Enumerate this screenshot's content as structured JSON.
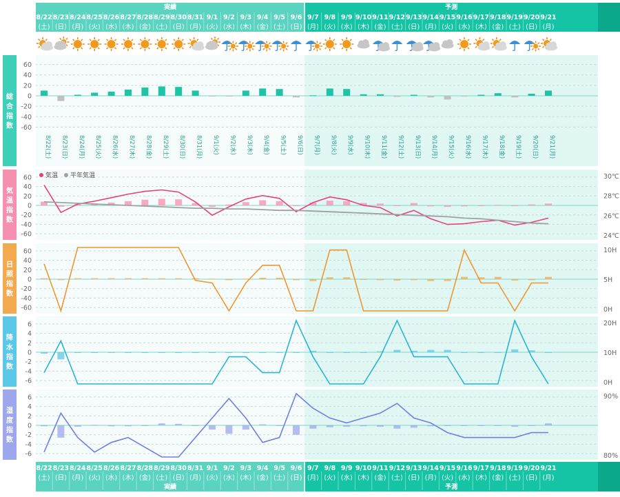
{
  "header": {
    "actual_label": "実績",
    "forecast_label": "予測",
    "dates": [
      "8/22",
      "8/23",
      "8/24",
      "8/25",
      "8/26",
      "8/27",
      "8/28",
      "8/29",
      "8/30",
      "8/31",
      "9/1",
      "9/2",
      "9/3",
      "9/4",
      "9/5",
      "9/6",
      "9/7",
      "9/8",
      "9/9",
      "9/10",
      "9/11",
      "9/12",
      "9/13",
      "9/14",
      "9/15",
      "9/16",
      "9/17",
      "9/18",
      "9/19",
      "9/20",
      "9/21"
    ],
    "weekdays": [
      "(土)",
      "(日)",
      "(月)",
      "(火)",
      "(水)",
      "(木)",
      "(金)",
      "(土)",
      "(日)",
      "(月)",
      "(火)",
      "(水)",
      "(木)",
      "(金)",
      "(土)",
      "(日)",
      "(月)",
      "(火)",
      "(水)",
      "(木)",
      "(金)",
      "(土)",
      "(日)",
      "(月)",
      "(火)",
      "(水)",
      "(木)",
      "(金)",
      "(土)",
      "(日)",
      "(月)"
    ],
    "weather_icons": [
      "sun-cloud-icon",
      "cloud-sun-icon",
      "sun-icon",
      "sun-icon",
      "sun-icon",
      "sun-icon",
      "sun-icon",
      "sun-icon",
      "sun-icon",
      "sun-cloud-icon",
      "cloud-sun-icon",
      "umbrella-sun-icon",
      "umbrella-sun-icon",
      "umbrella-sun-icon",
      "umbrella-sun-icon",
      "umbrella-icon",
      "umbrella-sun-icon",
      "sun-icon",
      "sun-icon",
      "cloud-icon",
      "umbrella-cloud-icon",
      "umbrella-icon",
      "umbrella-cloud-icon",
      "umbrella-cloud-icon",
      "cloud-icon",
      "sun-icon",
      "sun-cloud-icon",
      "sun-cloud-icon",
      "umbrella-icon",
      "umbrella-sun-icon",
      "sun-cloud-icon"
    ]
  },
  "panels": {
    "overall": {
      "label": "総合指数",
      "color": "#3ecfb8"
    },
    "temperature": {
      "label": "気温指数",
      "color": "#f590b0",
      "legend_temp": "気温",
      "legend_avg": "平年気温"
    },
    "sunshine": {
      "label": "日照指数",
      "color": "#f3a94f"
    },
    "precipitation": {
      "label": "降水指数",
      "color": "#5cc8e8"
    },
    "humidity": {
      "label": "湿度指数",
      "color": "#9ea7ec"
    }
  },
  "colors": {
    "header_actual": "#5ad4c0",
    "header_forecast": "#14c4a4",
    "forecast_bg": "#e0f7f3",
    "overall_bar_pos": "#1fc4a6",
    "overall_bar_neg": "#c0c0c0",
    "temp_line": "#e8407a",
    "avg_line": "#a0a0a0",
    "sun_line": "#f0962e",
    "precip_line": "#2ab4d4",
    "humid_line": "#6f7ee0"
  },
  "chart_data": [
    {
      "type": "bar",
      "title": "総合指数",
      "categories": [
        "8/22",
        "8/23",
        "8/24",
        "8/25",
        "8/26",
        "8/27",
        "8/28",
        "8/29",
        "8/30",
        "8/31",
        "9/1",
        "9/2",
        "9/3",
        "9/4",
        "9/5",
        "9/6",
        "9/7",
        "9/8",
        "9/9",
        "9/10",
        "9/11",
        "9/12",
        "9/13",
        "9/14",
        "9/15",
        "9/16",
        "9/17",
        "9/18",
        "9/19",
        "9/20",
        "9/21"
      ],
      "category_labels": [
        "8/22(土)",
        "8/23(日)",
        "8/24(月)",
        "8/25(火)",
        "8/26(水)",
        "8/27(木)",
        "8/28(金)",
        "8/29(土)",
        "8/30(日)",
        "8/31(月)",
        "9/1(火)",
        "9/2(水)",
        "9/3(木)",
        "9/4(金)",
        "9/5(土)",
        "9/6(日)",
        "9/7(月)",
        "9/8(火)",
        "9/9(水)",
        "9/10(木)",
        "9/11(金)",
        "9/12(土)",
        "9/13(日)",
        "9/14(月)",
        "9/15(火)",
        "9/16(水)",
        "9/17(木)",
        "9/18(金)",
        "9/19(土)",
        "9/20(日)",
        "9/21(月)"
      ],
      "values": [
        10,
        -10,
        2,
        6,
        8,
        12,
        16,
        18,
        17,
        10,
        -1,
        -1,
        10,
        14,
        13,
        -3,
        1,
        14,
        13,
        3,
        3,
        -2,
        2,
        -3,
        -7,
        -1,
        2,
        5,
        -3,
        4,
        10
      ],
      "ylim": [
        -70,
        70
      ],
      "yticks": [
        60,
        40,
        20,
        0,
        -20,
        -40,
        -60
      ]
    },
    {
      "type": "bar+line",
      "title": "気温指数",
      "categories": [
        "8/22",
        "8/23",
        "8/24",
        "8/25",
        "8/26",
        "8/27",
        "8/28",
        "8/29",
        "8/30",
        "8/31",
        "9/1",
        "9/2",
        "9/3",
        "9/4",
        "9/5",
        "9/6",
        "9/7",
        "9/8",
        "9/9",
        "9/10",
        "9/11",
        "9/12",
        "9/13",
        "9/14",
        "9/15",
        "9/16",
        "9/17",
        "9/18",
        "9/19",
        "9/20",
        "9/21"
      ],
      "index_values": [
        8,
        -3,
        3,
        4,
        6,
        9,
        12,
        14,
        13,
        5,
        -3,
        2,
        7,
        11,
        9,
        -1,
        6,
        10,
        9,
        5,
        4,
        -1,
        5,
        -2,
        -3,
        -2,
        -1,
        1,
        -1,
        2,
        4
      ],
      "series": [
        {
          "name": "気温",
          "values": [
            29.4,
            25.5,
            26.7,
            27.1,
            27.6,
            28.1,
            28.5,
            28.7,
            28.4,
            27.0,
            25.1,
            26.3,
            27.4,
            27.9,
            27.5,
            25.6,
            26.9,
            27.7,
            27.3,
            26.5,
            26.2,
            25.0,
            25.8,
            24.6,
            23.8,
            23.9,
            24.2,
            24.4,
            23.7,
            24.1,
            24.7
          ]
        },
        {
          "name": "平年気温",
          "values": [
            27.0,
            26.9,
            26.8,
            26.7,
            26.6,
            26.5,
            26.4,
            26.3,
            26.2,
            26.1,
            26.1,
            26.0,
            26.0,
            25.9,
            25.8,
            25.8,
            25.7,
            25.6,
            25.5,
            25.4,
            25.3,
            25.2,
            25.1,
            25.0,
            24.9,
            24.7,
            24.6,
            24.4,
            24.2,
            24.0,
            23.9
          ]
        }
      ],
      "ylim": [
        -70,
        70
      ],
      "yticks": [
        60,
        40,
        20,
        0,
        -20,
        -40,
        -60
      ],
      "y2lim": [
        22,
        31
      ],
      "y2ticks": [
        "30℃",
        "28℃",
        "26℃",
        "24℃"
      ]
    },
    {
      "type": "bar+line",
      "title": "日照指数",
      "categories": [
        "8/22",
        "8/23",
        "8/24",
        "8/25",
        "8/26",
        "8/27",
        "8/28",
        "8/29",
        "8/30",
        "8/31",
        "9/1",
        "9/2",
        "9/3",
        "9/4",
        "9/5",
        "9/6",
        "9/7",
        "9/8",
        "9/9",
        "9/10",
        "9/11",
        "9/12",
        "9/13",
        "9/14",
        "9/15",
        "9/16",
        "9/17",
        "9/18",
        "9/19",
        "9/20",
        "9/21"
      ],
      "index_values": [
        2,
        -2,
        2,
        2,
        2,
        2,
        2,
        2,
        2,
        2,
        1,
        -2,
        1,
        3,
        3,
        -2,
        -4,
        4,
        4,
        -1,
        -2,
        -3,
        -2,
        -4,
        -4,
        5,
        4,
        5,
        -3,
        -2,
        5
      ],
      "series": [
        {
          "name": "日照時間",
          "values": [
            9.3,
            0,
            12.5,
            12.5,
            12.5,
            12.5,
            12.5,
            12.5,
            12.5,
            6.0,
            5.5,
            0,
            5.5,
            9.0,
            9.0,
            0,
            0,
            12.0,
            12.0,
            0,
            0,
            0,
            0,
            0,
            0,
            12.0,
            5.5,
            5.5,
            0,
            5.5,
            5.5
          ]
        }
      ],
      "ylim": [
        -70,
        70
      ],
      "yticks": [
        60,
        40,
        20,
        0,
        -20,
        -40,
        -60
      ],
      "y2ticks": [
        "10H",
        "5H",
        "0H"
      ]
    },
    {
      "type": "bar+line",
      "title": "降水指数",
      "categories": [
        "8/22",
        "8/23",
        "8/24",
        "8/25",
        "8/26",
        "8/27",
        "8/28",
        "8/29",
        "8/30",
        "8/31",
        "9/1",
        "9/2",
        "9/3",
        "9/4",
        "9/5",
        "9/6",
        "9/7",
        "9/8",
        "9/9",
        "9/10",
        "9/11",
        "9/12",
        "9/13",
        "9/14",
        "9/15",
        "9/16",
        "9/17",
        "9/18",
        "9/19",
        "9/20",
        "9/21"
      ],
      "index_values": [
        -0.3,
        -1.5,
        -0.1,
        0,
        0,
        0,
        0,
        0,
        0,
        0,
        0,
        0,
        0,
        0,
        0,
        0,
        0.3,
        0,
        0,
        0,
        0.2,
        0.5,
        0.3,
        0.5,
        0.5,
        0,
        0,
        0,
        0.6,
        0.4,
        0
      ],
      "series": [
        {
          "name": "降水量",
          "values": [
            5,
            19,
            0,
            0,
            0,
            0,
            0,
            0,
            0,
            0,
            0,
            12,
            12,
            5,
            5,
            28,
            12,
            0,
            0,
            0,
            12,
            28,
            12,
            12,
            12,
            0,
            0,
            0,
            28,
            12,
            0
          ]
        }
      ],
      "ylim": [
        -7,
        7
      ],
      "yticks": [
        6,
        4,
        2,
        0,
        -2,
        -4,
        -6
      ],
      "y2ticks": [
        "20H",
        "10H",
        "0H"
      ]
    },
    {
      "type": "bar+line",
      "title": "湿度指数",
      "categories": [
        "8/22",
        "8/23",
        "8/24",
        "8/25",
        "8/26",
        "8/27",
        "8/28",
        "8/29",
        "8/30",
        "8/31",
        "9/1",
        "9/2",
        "9/3",
        "9/4",
        "9/5",
        "9/6",
        "9/7",
        "9/8",
        "9/9",
        "9/10",
        "9/11",
        "9/12",
        "9/13",
        "9/14",
        "9/15",
        "9/16",
        "9/17",
        "9/18",
        "9/19",
        "9/20",
        "9/21"
      ],
      "index_values": [
        -0.2,
        -2.6,
        -0.3,
        0.1,
        -0.2,
        -0.2,
        -0.1,
        0.4,
        0.3,
        -0.1,
        -0.9,
        -1.8,
        -0.9,
        0.2,
        -0.1,
        -2.0,
        -0.7,
        -0.4,
        -0.3,
        -0.2,
        -0.3,
        -0.7,
        -0.5,
        -0.2,
        -0.1,
        0,
        -0.1,
        -0.1,
        -0.3,
        -0.1,
        0.4
      ],
      "series": [
        {
          "name": "湿度",
          "values": [
            76,
            84,
            79,
            76,
            78,
            79,
            77,
            75,
            75,
            79,
            83,
            87,
            83,
            78,
            79,
            88,
            85,
            83,
            82,
            83,
            84,
            86,
            83,
            82,
            80,
            79,
            79,
            79,
            79,
            80,
            80
          ]
        }
      ],
      "ylim": [
        -7,
        7
      ],
      "yticks": [
        6,
        4,
        2,
        0,
        -2,
        -4,
        -6
      ],
      "y2ticks": [
        "90%",
        "80%"
      ]
    }
  ]
}
